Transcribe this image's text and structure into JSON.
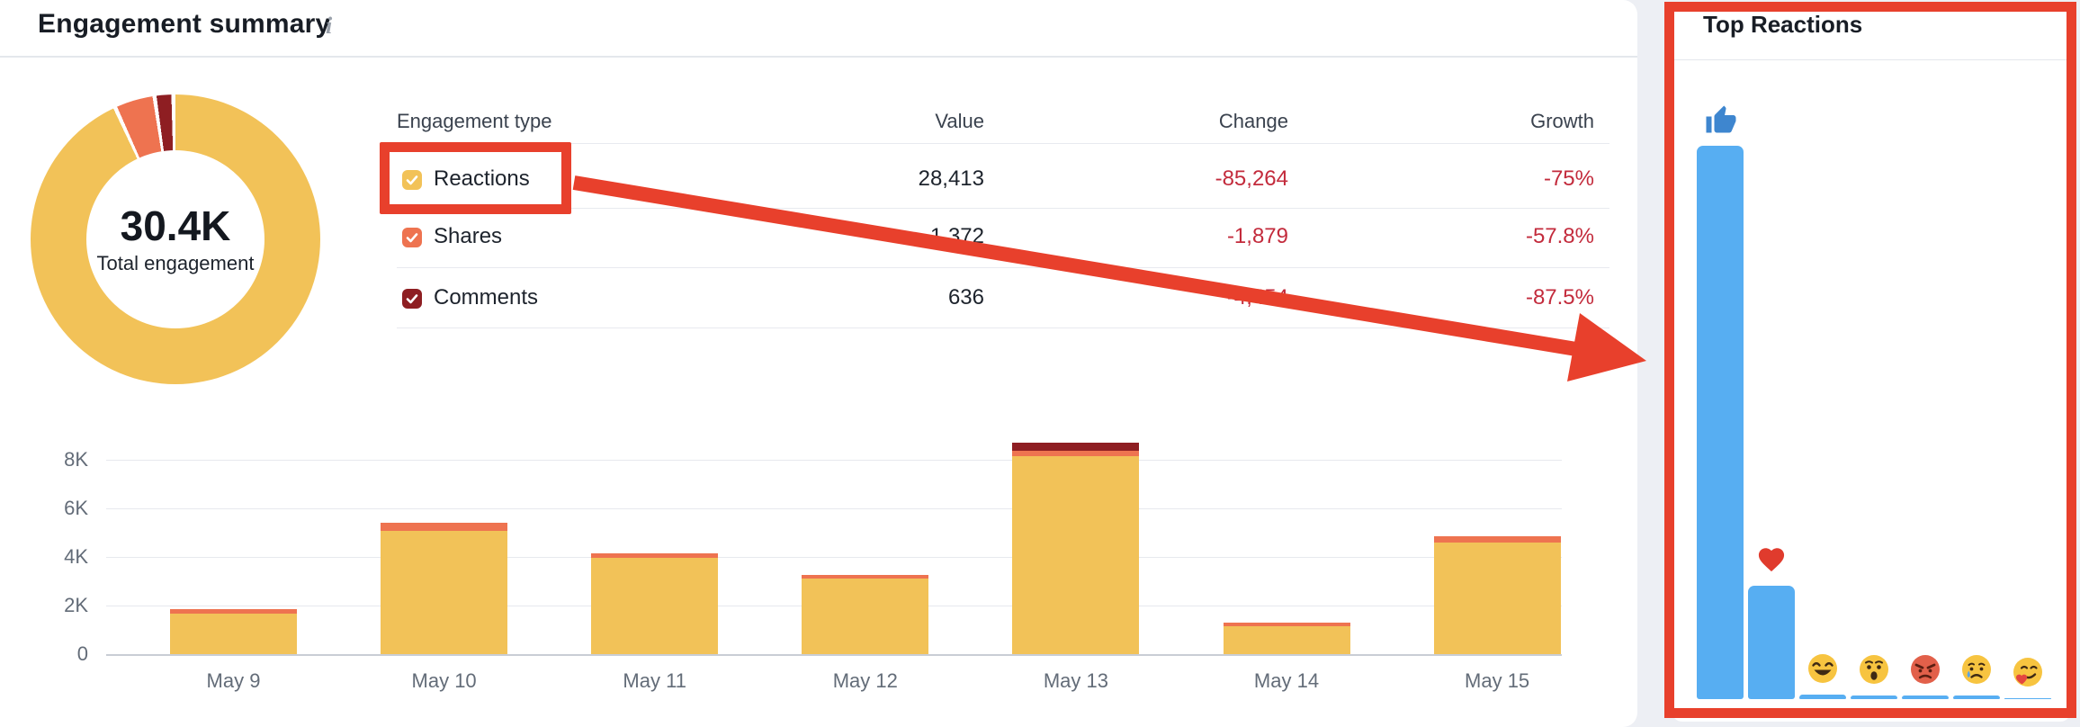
{
  "header": {
    "title": "Engagement summary"
  },
  "donut": {
    "total_label": "30.4K",
    "subtitle": "Total engagement"
  },
  "table": {
    "columns": [
      "Engagement type",
      "Value",
      "Change",
      "Growth"
    ],
    "rows": [
      {
        "label": "Reactions",
        "color": "#f2c258",
        "checked": true,
        "value": "28,413",
        "change": "-85,264",
        "growth": "-75%"
      },
      {
        "label": "Shares",
        "color": "#ee7350",
        "checked": true,
        "value": "1,372",
        "change": "-1,879",
        "growth": "-57.8%"
      },
      {
        "label": "Comments",
        "color": "#8e1e22",
        "checked": true,
        "value": "636",
        "change": "-4,454",
        "growth": "-87.5%"
      }
    ]
  },
  "top_reactions": {
    "title": "Top Reactions"
  },
  "colors": {
    "reactions_yellow": "#f2c258",
    "shares_orange": "#ee7350",
    "comments_dark_red": "#8e1e22",
    "negative_text_red": "#c32b3c",
    "annotation_red": "#e8402c",
    "reaction_bar_blue": "#57aef2",
    "thumb_blue": "#3e86cf",
    "heart_red": "#e03b2d"
  },
  "chart_data": [
    {
      "type": "pie",
      "subtype": "donut",
      "title": "Total engagement",
      "center_label": "30.4K",
      "segments": [
        {
          "label": "Reactions",
          "value": 28413,
          "color": "#f2c258"
        },
        {
          "label": "Shares",
          "value": 1372,
          "color": "#ee7350"
        },
        {
          "label": "Comments",
          "value": 636,
          "color": "#8e1e22"
        }
      ]
    },
    {
      "type": "bar",
      "stacked": true,
      "grid": true,
      "categories": [
        "May 9",
        "May 10",
        "May 11",
        "May 12",
        "May 13",
        "May 14",
        "May 15"
      ],
      "series": [
        {
          "name": "Reactions",
          "color": "#f2c258",
          "values": [
            1660,
            5070,
            3960,
            3110,
            8150,
            1150,
            4590
          ]
        },
        {
          "name": "Shares",
          "color": "#ee7350",
          "values": [
            190,
            330,
            190,
            150,
            220,
            150,
            260
          ]
        },
        {
          "name": "Comments",
          "color": "#8e1e22",
          "values": [
            0,
            0,
            0,
            0,
            330,
            0,
            0
          ]
        }
      ],
      "ylim": [
        0,
        8800
      ],
      "yticks": [
        {
          "label": "8K",
          "value": 8000
        },
        {
          "label": "6K",
          "value": 6000
        },
        {
          "label": "4K",
          "value": 4000
        },
        {
          "label": "2K",
          "value": 2000
        },
        {
          "label": "0",
          "value": 0
        }
      ]
    },
    {
      "type": "bar",
      "title": "Top Reactions",
      "note": "no numeric axis shown; values normalized to tallest bar",
      "categories": [
        "like",
        "love",
        "haha",
        "wow",
        "angry",
        "sad",
        "care"
      ],
      "values": [
        1.0,
        0.205,
        0.008,
        0.007,
        0.007,
        0.007,
        0.002
      ],
      "color": "#57aef2"
    }
  ]
}
